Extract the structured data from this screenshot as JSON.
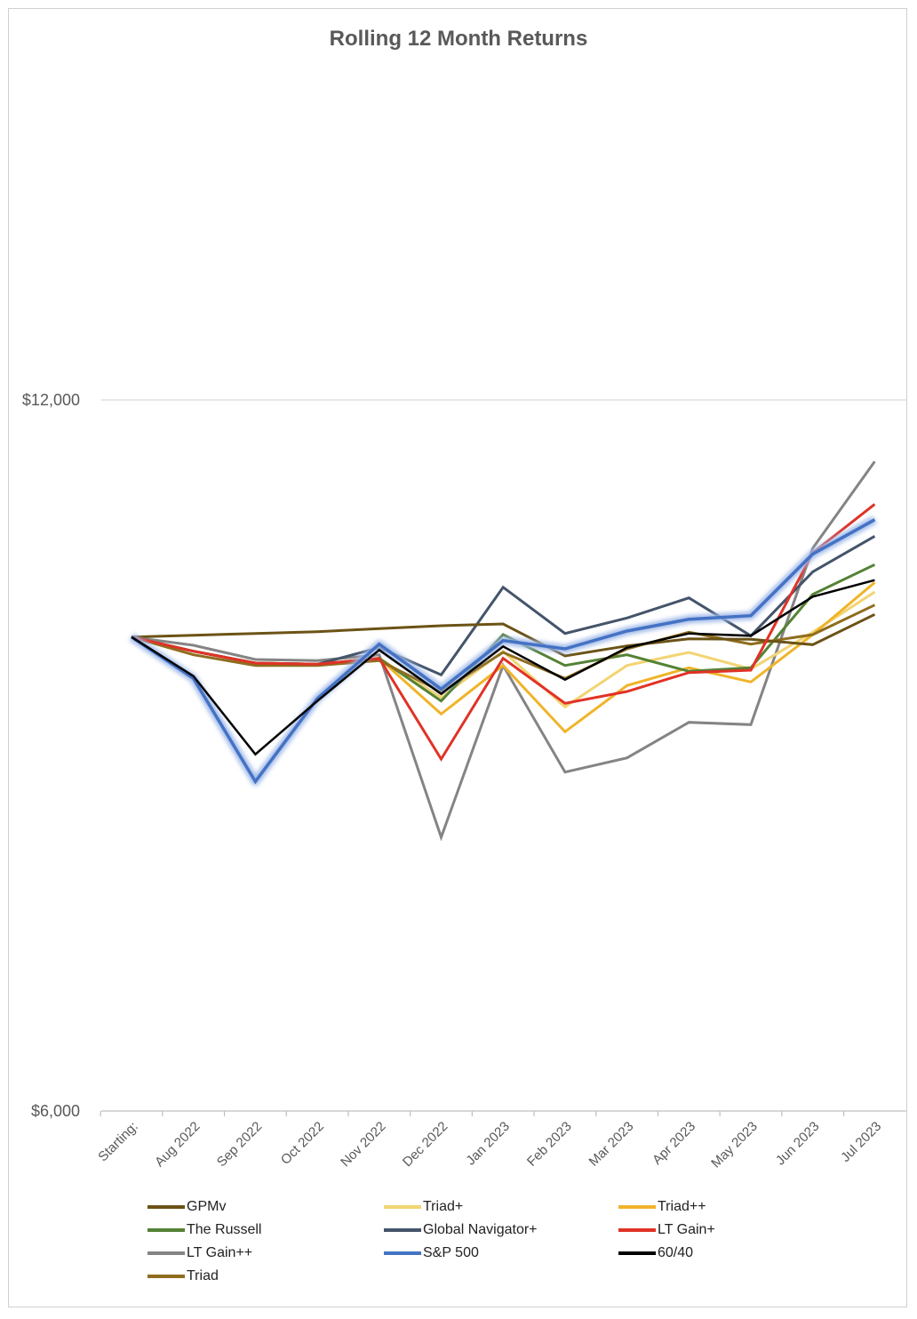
{
  "chart_data": {
    "type": "line",
    "title": "Rolling 12 Month Returns",
    "xlabel": "",
    "ylabel": "",
    "ylim": [
      6000,
      12000
    ],
    "yticks": [
      {
        "value": 12000,
        "label": "$12,000"
      },
      {
        "value": 6000,
        "label": "$6,000"
      }
    ],
    "categories": [
      "Starting:",
      "Aug 2022",
      "Sep 2022",
      "Oct 2022",
      "Nov 2022",
      "Dec 2022",
      "Jan 2023",
      "Feb 2023",
      "Mar 2023",
      "Apr 2023",
      "May 2023",
      "Jun 2023",
      "Jul 2023"
    ],
    "legend_position": "bottom",
    "grid": false,
    "series": [
      {
        "name": "GPMv",
        "color": "#6b5316",
        "width": 3,
        "values": [
          10000,
          10015,
          10030,
          10045,
          10070,
          10095,
          10110,
          9840,
          9925,
          9985,
          9980,
          9935,
          10190
        ]
      },
      {
        "name": "Triad+",
        "color": "#f2d472",
        "width": 3,
        "values": [
          10000,
          9880,
          9780,
          9770,
          9820,
          9490,
          9880,
          9410,
          9760,
          9870,
          9730,
          10040,
          10380
        ]
      },
      {
        "name": "Triad++",
        "color": "#f0b429",
        "width": 3,
        "values": [
          10000,
          9880,
          9780,
          9770,
          9820,
          9350,
          9760,
          9200,
          9590,
          9740,
          9620,
          10020,
          10460
        ]
      },
      {
        "name": "The Russell",
        "color": "#548235",
        "width": 3,
        "values": [
          10000,
          9880,
          9780,
          9770,
          9820,
          9460,
          10020,
          9760,
          9850,
          9710,
          9740,
          10360,
          10610
        ]
      },
      {
        "name": "Global Navigator+",
        "color": "#44546a",
        "width": 3,
        "values": [
          10000,
          9880,
          9780,
          9770,
          9910,
          9680,
          10420,
          10030,
          10160,
          10330,
          10010,
          10550,
          10850
        ]
      },
      {
        "name": "LT Gain+",
        "color": "#e03227",
        "width": 3,
        "values": [
          10000,
          9880,
          9780,
          9770,
          9820,
          8970,
          9820,
          9440,
          9540,
          9700,
          9720,
          10710,
          11120
        ]
      },
      {
        "name": "LT Gain++",
        "color": "#848484",
        "width": 3,
        "values": [
          10000,
          9930,
          9810,
          9800,
          9850,
          8310,
          9760,
          8860,
          8980,
          9280,
          9260,
          10750,
          11480
        ]
      },
      {
        "name": "S&P 500",
        "color": "#4472c4",
        "width": 3.5,
        "glow": true,
        "values": [
          10000,
          9650,
          8780,
          9480,
          9940,
          9560,
          9970,
          9900,
          10050,
          10150,
          10180,
          10700,
          10990
        ]
      },
      {
        "name": "60/40",
        "color": "#000000",
        "width": 2.5,
        "values": [
          10000,
          9670,
          9010,
          9460,
          9890,
          9520,
          9920,
          9640,
          9910,
          10030,
          10010,
          10340,
          10480
        ]
      },
      {
        "name": "Triad",
        "color": "#8f6d1f",
        "width": 3,
        "values": [
          10000,
          9850,
          9760,
          9760,
          9800,
          9540,
          9870,
          9650,
          9900,
          10040,
          9940,
          10020,
          10270
        ]
      }
    ]
  }
}
